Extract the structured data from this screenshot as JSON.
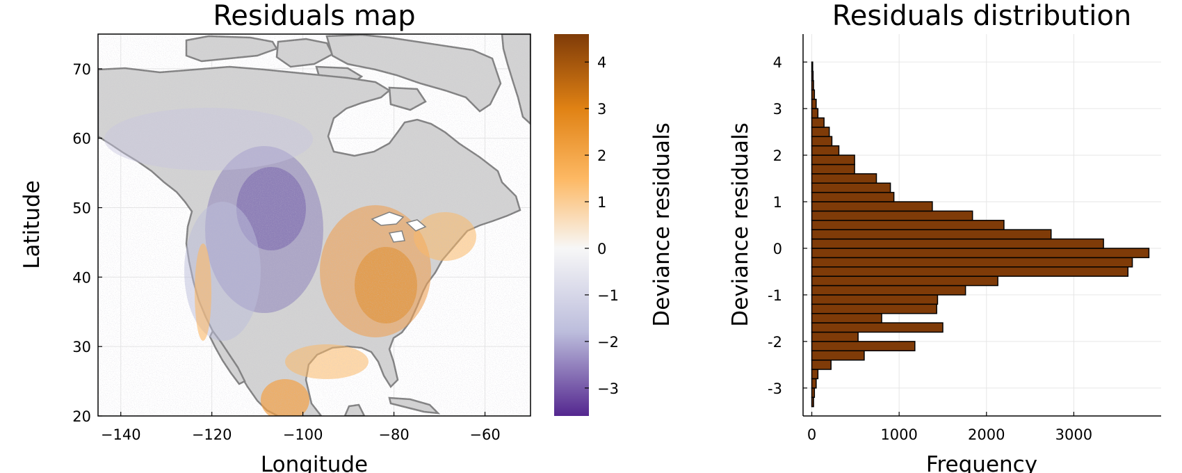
{
  "chart_data": [
    {
      "type": "heatmap",
      "title": "Residuals map",
      "xlabel": "Longitude",
      "ylabel": "Latitude",
      "xlim": [
        -145,
        -50
      ],
      "ylim": [
        20,
        75
      ],
      "xticks": [
        -140,
        -120,
        -100,
        -80,
        -60
      ],
      "yticks": [
        20,
        30,
        40,
        50,
        60,
        70
      ],
      "xtick_labels": [
        "−140",
        "−120",
        "−100",
        "−80",
        "−60"
      ],
      "ytick_labels": [
        "20",
        "30",
        "40",
        "50",
        "60",
        "70"
      ],
      "grid": true,
      "colorbar": {
        "label": "Deviance residuals",
        "range": [
          -3.6,
          4.6
        ],
        "ticks": [
          -3,
          -2,
          -1,
          0,
          1,
          2,
          3,
          4
        ],
        "tick_labels": [
          "−3",
          "−2",
          "−1",
          "0",
          "1",
          "2",
          "3",
          "4"
        ],
        "colors": [
          "#54278f",
          "#bcbddc",
          "#f7f7f7",
          "#fdb863",
          "#e08214",
          "#7f3b08"
        ]
      },
      "land_color": "#d3d3d3",
      "coast_color": "#808080",
      "pattern": "negative residuals over the western interior and Great Plains; positive residuals over the eastern United States"
    },
    {
      "type": "bar",
      "orientation": "horizontal",
      "title": "Residuals distribution",
      "xlabel": "Frequency",
      "ylabel": "Deviance residuals",
      "xlim": [
        -100,
        4000
      ],
      "ylim": [
        -3.6,
        4.6
      ],
      "xticks": [
        0,
        1000,
        2000,
        3000
      ],
      "xtick_labels": [
        "0",
        "1000",
        "2000",
        "3000"
      ],
      "yticks": [
        -3,
        -2,
        -1,
        0,
        1,
        2,
        3,
        4
      ],
      "ytick_labels": [
        "-3",
        "-2",
        "-1",
        "0",
        "1",
        "2",
        "3",
        "4"
      ],
      "grid": true,
      "bar_color": "#7f3b08",
      "bin_width": 0.2,
      "bins": [
        {
          "lo": -3.4,
          "count": 20
        },
        {
          "lo": -3.2,
          "count": 30
        },
        {
          "lo": -3.0,
          "count": 50
        },
        {
          "lo": -2.8,
          "count": 70
        },
        {
          "lo": -2.6,
          "count": 220
        },
        {
          "lo": -2.4,
          "count": 600
        },
        {
          "lo": -2.2,
          "count": 1180
        },
        {
          "lo": -2.0,
          "count": 530
        },
        {
          "lo": -1.8,
          "count": 1500
        },
        {
          "lo": -1.6,
          "count": 800
        },
        {
          "lo": -1.4,
          "count": 1430
        },
        {
          "lo": -1.2,
          "count": 1440
        },
        {
          "lo": -1.0,
          "count": 1760
        },
        {
          "lo": -0.8,
          "count": 2130
        },
        {
          "lo": -0.6,
          "count": 3620
        },
        {
          "lo": -0.4,
          "count": 3670
        },
        {
          "lo": -0.2,
          "count": 3860
        },
        {
          "lo": 0.0,
          "count": 3340
        },
        {
          "lo": 0.2,
          "count": 2740
        },
        {
          "lo": 0.4,
          "count": 2200
        },
        {
          "lo": 0.6,
          "count": 1840
        },
        {
          "lo": 0.8,
          "count": 1380
        },
        {
          "lo": 1.0,
          "count": 940
        },
        {
          "lo": 1.2,
          "count": 900
        },
        {
          "lo": 1.4,
          "count": 740
        },
        {
          "lo": 1.6,
          "count": 490
        },
        {
          "lo": 1.8,
          "count": 490
        },
        {
          "lo": 2.0,
          "count": 310
        },
        {
          "lo": 2.2,
          "count": 230
        },
        {
          "lo": 2.4,
          "count": 200
        },
        {
          "lo": 2.6,
          "count": 140
        },
        {
          "lo": 2.8,
          "count": 70
        },
        {
          "lo": 3.0,
          "count": 50
        },
        {
          "lo": 3.2,
          "count": 30
        },
        {
          "lo": 3.4,
          "count": 20
        },
        {
          "lo": 3.6,
          "count": 15
        },
        {
          "lo": 3.8,
          "count": 10
        }
      ]
    }
  ]
}
